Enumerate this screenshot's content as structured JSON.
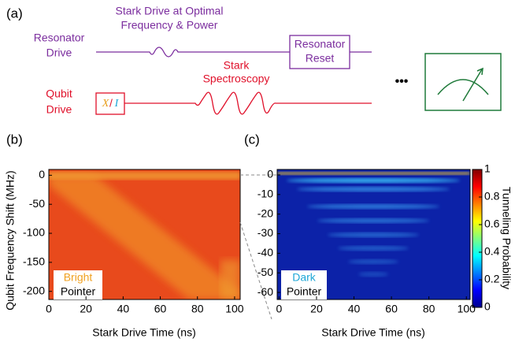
{
  "panel_a": {
    "label": "(a)",
    "stark_drive_title": [
      "Stark Drive at Optimal",
      "Frequency & Power"
    ],
    "resonator_label": [
      "Resonator",
      "Drive"
    ],
    "resonator_box": [
      "Resonator",
      "Reset"
    ],
    "spectroscopy_title": [
      "Stark",
      "Spectroscopy"
    ],
    "qubit_label": [
      "Qubit",
      "Drive"
    ],
    "qubit_box": [
      "X",
      "/",
      "I"
    ],
    "ellipsis": "•••"
  },
  "panel_b": {
    "label": "(b)",
    "xlabel": "Stark Drive Time (ns)",
    "ylabel": "Qubit Frequency Shift (MHz)",
    "xlim": [
      0,
      103
    ],
    "ylim": [
      -214,
      10
    ],
    "xticks": [
      0,
      20,
      40,
      60,
      80,
      100
    ],
    "yticks": [
      0,
      -50,
      -100,
      -150,
      -200
    ],
    "inset": [
      "Bright",
      "Pointer"
    ]
  },
  "panel_c": {
    "label": "(c)",
    "xlabel": "Stark Drive Time (ns)",
    "xlim": [
      -1,
      102
    ],
    "ylim": [
      -63.6,
      2.8
    ],
    "xticks": [
      0,
      20,
      40,
      60,
      80,
      100
    ],
    "yticks": [
      0,
      -10,
      -20,
      -30,
      -40,
      -50,
      -60
    ],
    "inset": [
      "Dark",
      "Pointer"
    ],
    "colorbar": {
      "label": "Tunneling Probability",
      "lim": [
        0,
        1
      ],
      "ticks": [
        0,
        0.2,
        0.4,
        0.6,
        0.8,
        1
      ]
    }
  }
}
